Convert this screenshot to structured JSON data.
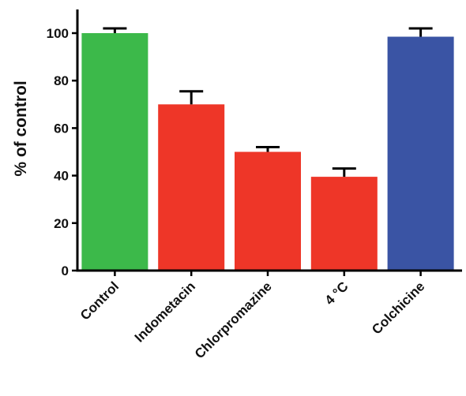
{
  "chart_data": {
    "type": "bar",
    "title": "",
    "xlabel": "",
    "ylabel": "% of control",
    "ylim": [
      0,
      110
    ],
    "yticks": [
      0,
      20,
      40,
      60,
      80,
      100
    ],
    "grid": false,
    "legend": "none",
    "categories": [
      "Control",
      "Indometacin",
      "Chlorpromazine",
      "4 °C",
      "Colchicine"
    ],
    "values": [
      100,
      70,
      50,
      39.5,
      98.5
    ],
    "errors": [
      2,
      5.5,
      2,
      3.5,
      3.5
    ],
    "colors": [
      "#3cb94a",
      "#ee3628",
      "#ee3628",
      "#ee3628",
      "#3a54a4"
    ]
  }
}
